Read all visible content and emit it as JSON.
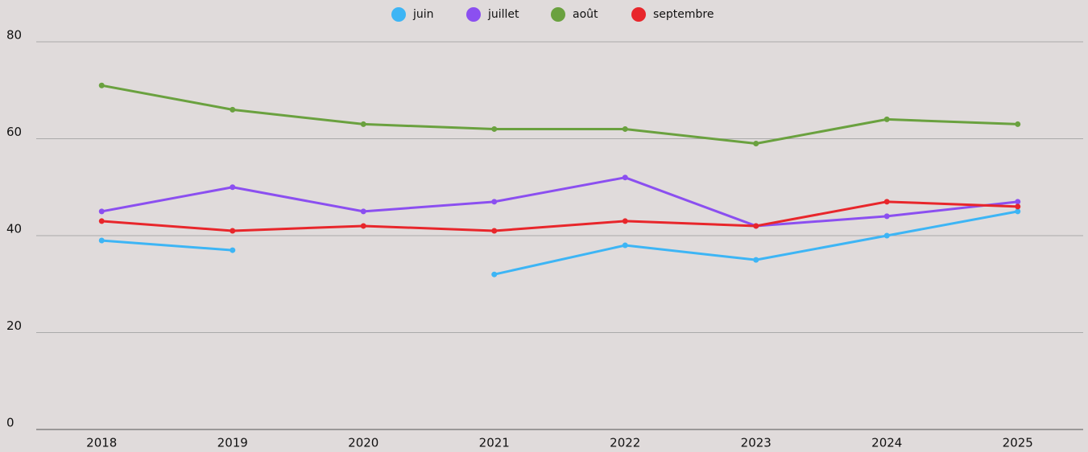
{
  "chart_data": {
    "type": "line",
    "categories": [
      "2018",
      "2019",
      "2020",
      "2021",
      "2022",
      "2023",
      "2024",
      "2025"
    ],
    "series": [
      {
        "name": "juin",
        "color": "#3db5f5",
        "values": [
          39,
          37,
          null,
          32,
          38,
          35,
          40,
          45
        ]
      },
      {
        "name": "juillet",
        "color": "#8b4ff0",
        "values": [
          45,
          50,
          45,
          47,
          52,
          42,
          44,
          47
        ]
      },
      {
        "name": "août",
        "color": "#6aa13f",
        "values": [
          71,
          66,
          63,
          62,
          62,
          59,
          64,
          63
        ]
      },
      {
        "name": "septembre",
        "color": "#e8262b",
        "values": [
          43,
          41,
          42,
          41,
          43,
          42,
          47,
          46
        ]
      }
    ],
    "ylim": [
      0,
      80
    ],
    "yticks": [
      0,
      20,
      40,
      60,
      80
    ],
    "grid": true,
    "legend": "top"
  }
}
